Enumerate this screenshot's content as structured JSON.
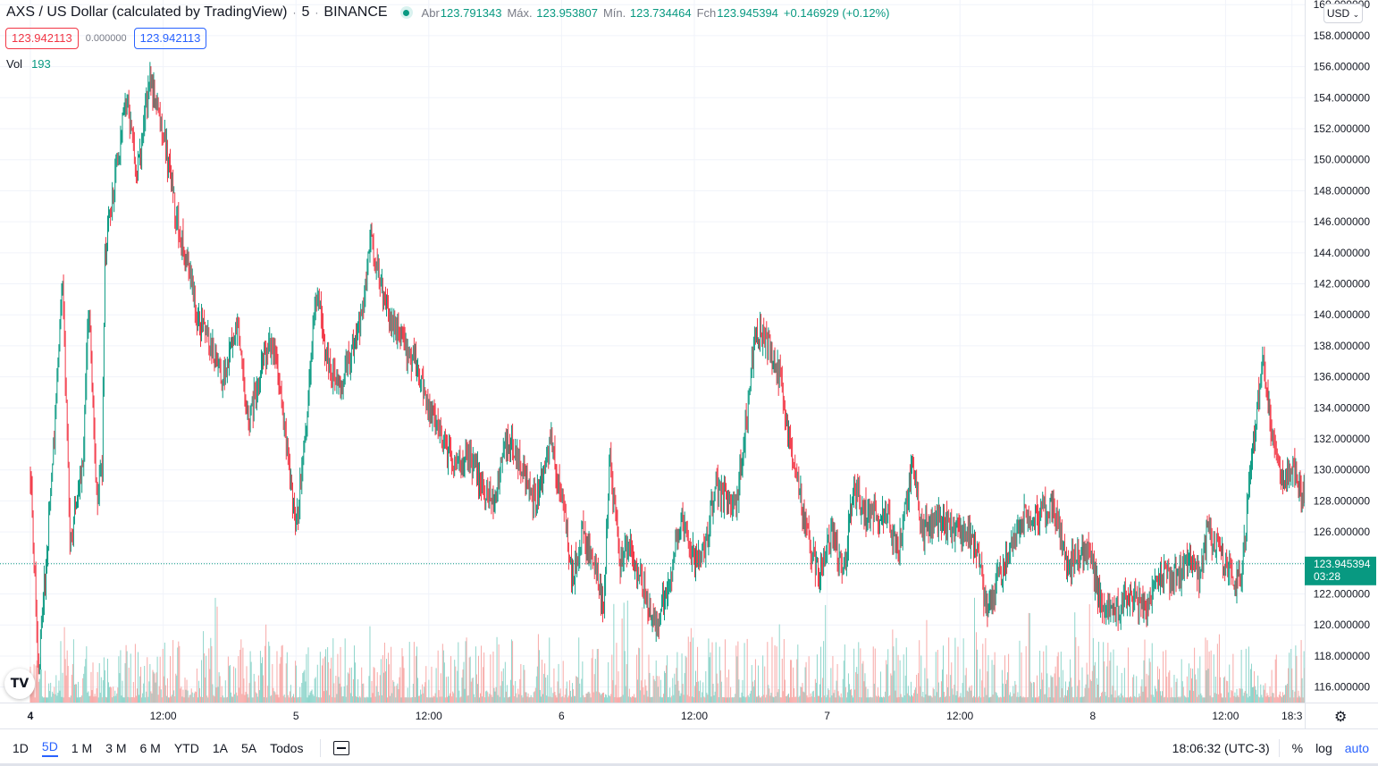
{
  "header": {
    "symbol_title": "AXS / US Dollar (calculated by TradingView)",
    "interval": "5",
    "exchange": "BINANCE",
    "ohlc": {
      "open_label": "Abr",
      "open": "123.791343",
      "high_label": "Máx.",
      "high": "123.953807",
      "low_label": "Mín.",
      "low": "123.734464",
      "close_label": "Fch",
      "close": "123.945394",
      "change": "+0.146929 (+0.12%)"
    },
    "sell_price": "123.942113",
    "spread": "0.000000",
    "buy_price": "123.942113",
    "volume_label": "Vol",
    "volume_value": "193"
  },
  "currency_selector": "USD",
  "logo_text": "TV",
  "icons": {
    "settings": "gear-icon",
    "calendar": "calendar-icon",
    "logo": "tradingview-logo-icon"
  },
  "colors": {
    "up": "#089981",
    "down": "#f23645",
    "vol_up": "#8ed5cb",
    "vol_down": "#f7a9a7",
    "accent": "#2962ff"
  },
  "bottom_bar": {
    "ranges": [
      {
        "label": "1D",
        "active": false
      },
      {
        "label": "5D",
        "active": true
      },
      {
        "label": "1 M",
        "active": false
      },
      {
        "label": "3 M",
        "active": false
      },
      {
        "label": "6 M",
        "active": false
      },
      {
        "label": "YTD",
        "active": false
      },
      {
        "label": "1A",
        "active": false
      },
      {
        "label": "5A",
        "active": false
      },
      {
        "label": "Todos",
        "active": false
      }
    ],
    "clock": "18:06:32 (UTC-3)",
    "percent_label": "%",
    "log_label": "log",
    "auto_label": "auto"
  },
  "chart_data": {
    "type": "candlestick",
    "y_axis": {
      "min": 115.0,
      "max": 160.3,
      "tick_labels": [
        "160.000000",
        "158.000000",
        "156.000000",
        "154.000000",
        "152.000000",
        "150.000000",
        "148.000000",
        "146.000000",
        "144.000000",
        "142.000000",
        "140.000000",
        "138.000000",
        "136.000000",
        "134.000000",
        "132.000000",
        "130.000000",
        "128.000000",
        "126.000000",
        "124.000000",
        "122.000000",
        "120.000000",
        "118.000000",
        "116.000000"
      ],
      "tick_values": [
        160,
        158,
        156,
        154,
        152,
        150,
        148,
        146,
        144,
        142,
        140,
        138,
        136,
        134,
        132,
        130,
        128,
        126,
        124,
        122,
        120,
        118,
        116
      ]
    },
    "x_axis": {
      "start": 0,
      "end": 4.92,
      "ticks": [
        {
          "label": "4",
          "day": 0.0,
          "bold": true
        },
        {
          "label": "12:00",
          "day": 0.5
        },
        {
          "label": "5",
          "day": 1.0
        },
        {
          "label": "12:00",
          "day": 1.5
        },
        {
          "label": "6",
          "day": 2.0
        },
        {
          "label": "12:00",
          "day": 2.5
        },
        {
          "label": "7",
          "day": 3.0
        },
        {
          "label": "12:00",
          "day": 3.5
        },
        {
          "label": "8",
          "day": 4.0
        },
        {
          "label": "12:00",
          "day": 4.5
        },
        {
          "label": "18:3",
          "day": 4.75
        }
      ]
    },
    "current_price": {
      "value": 123.945394,
      "label": "123.945394",
      "countdown": "03:28"
    },
    "price_path": [
      [
        0.0,
        130
      ],
      [
        0.03,
        117
      ],
      [
        0.08,
        129
      ],
      [
        0.12,
        143
      ],
      [
        0.15,
        125
      ],
      [
        0.2,
        131
      ],
      [
        0.22,
        141
      ],
      [
        0.25,
        128
      ],
      [
        0.27,
        130
      ],
      [
        0.28,
        144
      ],
      [
        0.33,
        150
      ],
      [
        0.36,
        154
      ],
      [
        0.4,
        149
      ],
      [
        0.45,
        155
      ],
      [
        0.5,
        152
      ],
      [
        0.55,
        146
      ],
      [
        0.6,
        143
      ],
      [
        0.62,
        140
      ],
      [
        0.68,
        138
      ],
      [
        0.72,
        136
      ],
      [
        0.78,
        139
      ],
      [
        0.82,
        133
      ],
      [
        0.88,
        137
      ],
      [
        0.92,
        138
      ],
      [
        0.97,
        131
      ],
      [
        1.0,
        126
      ],
      [
        1.04,
        133
      ],
      [
        1.08,
        142
      ],
      [
        1.1,
        139
      ],
      [
        1.12,
        137
      ],
      [
        1.16,
        135
      ],
      [
        1.2,
        137
      ],
      [
        1.25,
        140
      ],
      [
        1.28,
        145
      ],
      [
        1.32,
        142
      ],
      [
        1.38,
        139
      ],
      [
        1.42,
        137
      ],
      [
        1.45,
        137
      ],
      [
        1.5,
        134
      ],
      [
        1.55,
        132
      ],
      [
        1.6,
        130
      ],
      [
        1.65,
        131
      ],
      [
        1.7,
        129
      ],
      [
        1.74,
        128
      ],
      [
        1.8,
        132
      ],
      [
        1.85,
        130
      ],
      [
        1.9,
        128
      ],
      [
        1.96,
        132
      ],
      [
        2.0,
        128
      ],
      [
        2.02,
        126
      ],
      [
        2.04,
        123
      ],
      [
        2.08,
        126
      ],
      [
        2.12,
        124
      ],
      [
        2.16,
        121
      ],
      [
        2.18,
        131
      ],
      [
        2.22,
        124
      ],
      [
        2.26,
        125
      ],
      [
        2.3,
        123
      ],
      [
        2.35,
        120
      ],
      [
        2.4,
        122
      ],
      [
        2.45,
        127
      ],
      [
        2.5,
        124
      ],
      [
        2.54,
        125
      ],
      [
        2.58,
        129
      ],
      [
        2.62,
        128
      ],
      [
        2.66,
        128
      ],
      [
        2.7,
        134
      ],
      [
        2.73,
        139
      ],
      [
        2.78,
        138
      ],
      [
        2.82,
        136
      ],
      [
        2.87,
        131
      ],
      [
        2.92,
        126
      ],
      [
        2.97,
        123
      ],
      [
        3.02,
        126
      ],
      [
        3.06,
        123
      ],
      [
        3.1,
        129
      ],
      [
        3.15,
        127
      ],
      [
        3.22,
        127
      ],
      [
        3.27,
        125
      ],
      [
        3.32,
        130
      ],
      [
        3.36,
        126
      ],
      [
        3.42,
        127
      ],
      [
        3.48,
        126
      ],
      [
        3.52,
        126
      ],
      [
        3.56,
        125
      ],
      [
        3.6,
        121
      ],
      [
        3.65,
        123
      ],
      [
        3.7,
        125
      ],
      [
        3.74,
        127
      ],
      [
        3.8,
        127
      ],
      [
        3.85,
        128
      ],
      [
        3.9,
        124
      ],
      [
        3.94,
        124
      ],
      [
        3.98,
        125
      ],
      [
        4.02,
        122
      ],
      [
        4.06,
        121
      ],
      [
        4.1,
        121
      ],
      [
        4.14,
        122
      ],
      [
        4.2,
        121
      ],
      [
        4.24,
        123
      ],
      [
        4.3,
        123
      ],
      [
        4.36,
        124
      ],
      [
        4.4,
        123
      ],
      [
        4.43,
        126
      ],
      [
        4.47,
        125
      ],
      [
        4.5,
        124
      ],
      [
        4.53,
        123
      ],
      [
        4.56,
        123
      ],
      [
        4.6,
        131
      ],
      [
        4.64,
        137
      ],
      [
        4.68,
        132
      ],
      [
        4.72,
        129
      ],
      [
        4.76,
        130
      ],
      [
        4.8,
        128
      ],
      [
        4.84,
        125
      ],
      [
        4.88,
        124
      ],
      [
        4.92,
        124
      ]
    ],
    "volume_scale_max": 150
  }
}
